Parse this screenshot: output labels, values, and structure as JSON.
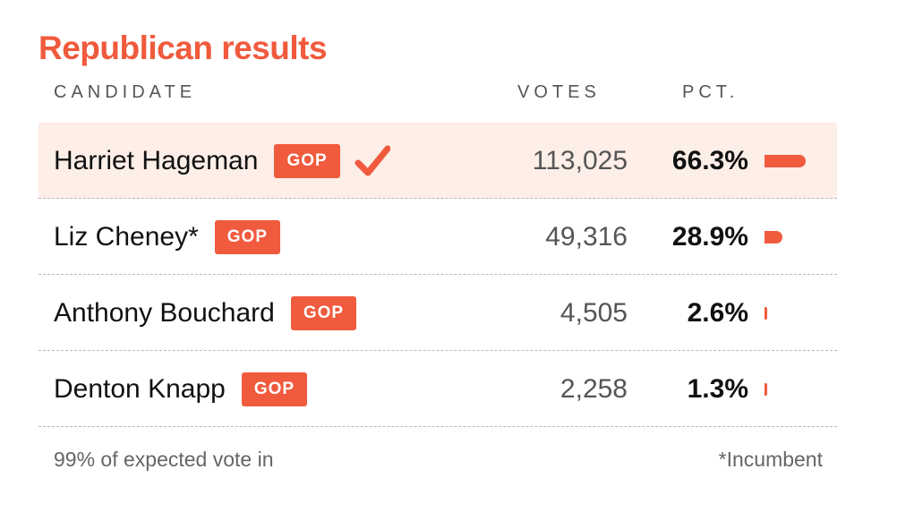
{
  "title": "Republican results",
  "columns": {
    "candidate": "CANDIDATE",
    "votes": "VOTES",
    "pct": "PCT."
  },
  "rows": [
    {
      "name": "Harriet Hageman",
      "party": "GOP",
      "votes": "113,025",
      "pct": "66.3%",
      "pct_value": 66.3,
      "winner": true
    },
    {
      "name": "Liz Cheney*",
      "party": "GOP",
      "votes": "49,316",
      "pct": "28.9%",
      "pct_value": 28.9,
      "winner": false
    },
    {
      "name": "Anthony Bouchard",
      "party": "GOP",
      "votes": "4,505",
      "pct": "2.6%",
      "pct_value": 2.6,
      "winner": false
    },
    {
      "name": "Denton Knapp",
      "party": "GOP",
      "votes": "2,258",
      "pct": "1.3%",
      "pct_value": 1.3,
      "winner": false
    }
  ],
  "footer": {
    "reporting": "99% of expected vote in",
    "incumbent_note": "*Incumbent"
  },
  "colors": {
    "accent": "#f05a3d",
    "winner_row_bg": "#fdeee8"
  },
  "icons": {
    "winner": "checkmark-icon"
  }
}
